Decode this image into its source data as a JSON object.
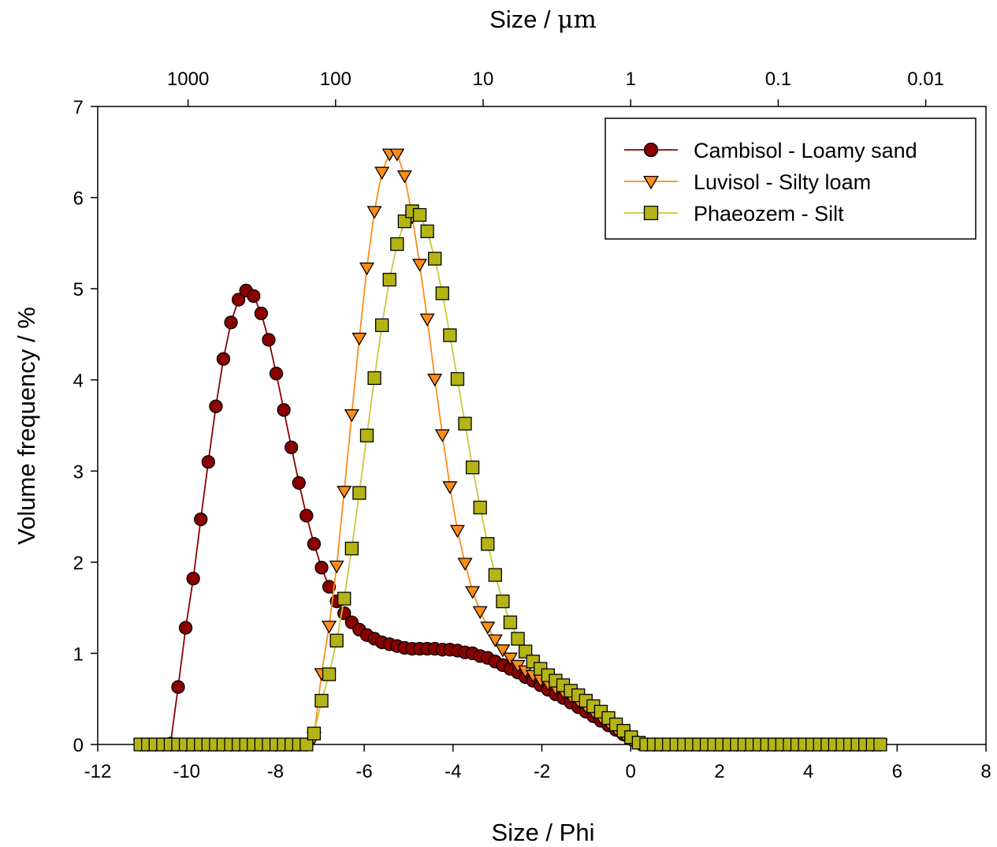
{
  "chart_data": {
    "type": "line",
    "xlabel": "Size / Phi",
    "ylabel": "Volume frequency / %",
    "x2label_prefix": "Size / ",
    "x2label_unit": "μm",
    "xlim": [
      -12,
      8
    ],
    "ylim": [
      0,
      7
    ],
    "xticks": [
      -12,
      -10,
      -8,
      -6,
      -4,
      -2,
      0,
      2,
      4,
      6,
      8
    ],
    "xtick_labels": [
      "-12",
      "-10",
      "-8",
      "-6",
      "-4",
      "-2",
      "0",
      "2",
      "4",
      "6",
      "8"
    ],
    "yticks": [
      0,
      1,
      2,
      3,
      4,
      5,
      6,
      7
    ],
    "ytick_labels": [
      "0",
      "1",
      "2",
      "3",
      "4",
      "5",
      "6",
      "7"
    ],
    "top_ticks": [
      {
        "phi": -9.966,
        "label": "1000"
      },
      {
        "phi": -6.644,
        "label": "100"
      },
      {
        "phi": -3.322,
        "label": "10"
      },
      {
        "phi": 0,
        "label": "1"
      },
      {
        "phi": 3.322,
        "label": "0.1"
      },
      {
        "phi": 6.644,
        "label": "0.01"
      }
    ],
    "legend_position": "top-right",
    "grid": false,
    "series": [
      {
        "name": "Cambisol - Loamy sand",
        "marker": "circle",
        "line_color": "#8b0000",
        "marker_fill": "#8b0000",
        "points": [
          [
            -11.04,
            0
          ],
          [
            -10.87,
            0
          ],
          [
            -10.7,
            0
          ],
          [
            -10.53,
            0
          ],
          [
            -10.36,
            0.01
          ],
          [
            -10.19,
            0.63
          ],
          [
            -10.02,
            1.28
          ],
          [
            -9.85,
            1.82
          ],
          [
            -9.68,
            2.47
          ],
          [
            -9.51,
            3.1
          ],
          [
            -9.34,
            3.71
          ],
          [
            -9.17,
            4.23
          ],
          [
            -9.0,
            4.63
          ],
          [
            -8.83,
            4.88
          ],
          [
            -8.66,
            4.98
          ],
          [
            -8.49,
            4.92
          ],
          [
            -8.32,
            4.73
          ],
          [
            -8.15,
            4.44
          ],
          [
            -7.98,
            4.07
          ],
          [
            -7.81,
            3.67
          ],
          [
            -7.64,
            3.26
          ],
          [
            -7.47,
            2.87
          ],
          [
            -7.3,
            2.51
          ],
          [
            -7.13,
            2.2
          ],
          [
            -6.96,
            1.94
          ],
          [
            -6.79,
            1.73
          ],
          [
            -6.62,
            1.57
          ],
          [
            -6.45,
            1.44
          ],
          [
            -6.28,
            1.34
          ],
          [
            -6.11,
            1.26
          ],
          [
            -5.94,
            1.2
          ],
          [
            -5.77,
            1.16
          ],
          [
            -5.6,
            1.12
          ],
          [
            -5.43,
            1.1
          ],
          [
            -5.26,
            1.08
          ],
          [
            -5.09,
            1.06
          ],
          [
            -4.92,
            1.05
          ],
          [
            -4.75,
            1.05
          ],
          [
            -4.58,
            1.05
          ],
          [
            -4.41,
            1.05
          ],
          [
            -4.24,
            1.04
          ],
          [
            -4.07,
            1.04
          ],
          [
            -3.9,
            1.03
          ],
          [
            -3.73,
            1.01
          ],
          [
            -3.56,
            1.0
          ],
          [
            -3.39,
            0.97
          ],
          [
            -3.22,
            0.95
          ],
          [
            -3.05,
            0.91
          ],
          [
            -2.88,
            0.87
          ],
          [
            -2.71,
            0.83
          ],
          [
            -2.54,
            0.79
          ],
          [
            -2.37,
            0.74
          ],
          [
            -2.2,
            0.7
          ],
          [
            -2.03,
            0.65
          ],
          [
            -1.86,
            0.6
          ],
          [
            -1.69,
            0.55
          ],
          [
            -1.52,
            0.51
          ],
          [
            -1.35,
            0.46
          ],
          [
            -1.18,
            0.41
          ],
          [
            -1.01,
            0.36
          ],
          [
            -0.84,
            0.31
          ],
          [
            -0.67,
            0.26
          ],
          [
            -0.5,
            0.21
          ],
          [
            -0.33,
            0.16
          ],
          [
            -0.16,
            0.11
          ],
          [
            0.01,
            0.06
          ],
          [
            0.18,
            0.02
          ],
          [
            0.35,
            0
          ],
          [
            0.52,
            0
          ],
          [
            0.69,
            0
          ],
          [
            0.86,
            0
          ],
          [
            1.03,
            0
          ],
          [
            1.2,
            0
          ],
          [
            1.37,
            0
          ],
          [
            1.54,
            0
          ],
          [
            1.71,
            0
          ],
          [
            1.88,
            0
          ],
          [
            2.05,
            0
          ],
          [
            2.22,
            0
          ],
          [
            2.39,
            0
          ],
          [
            2.56,
            0
          ],
          [
            2.73,
            0
          ],
          [
            2.9,
            0
          ],
          [
            3.07,
            0
          ],
          [
            3.24,
            0
          ],
          [
            3.41,
            0
          ],
          [
            3.58,
            0
          ],
          [
            3.75,
            0
          ],
          [
            3.92,
            0
          ],
          [
            4.09,
            0
          ],
          [
            4.26,
            0
          ],
          [
            4.43,
            0
          ],
          [
            4.6,
            0
          ],
          [
            4.77,
            0
          ],
          [
            4.94,
            0
          ],
          [
            5.11,
            0
          ],
          [
            5.28,
            0
          ],
          [
            5.45,
            0
          ],
          [
            5.62,
            0
          ]
        ]
      },
      {
        "name": "Luvisol - Silty loam",
        "marker": "triangle-down",
        "line_color": "#ff8c1a",
        "marker_fill": "#ff8c1a",
        "points": [
          [
            -11.04,
            0
          ],
          [
            -10.87,
            0
          ],
          [
            -10.7,
            0
          ],
          [
            -10.53,
            0
          ],
          [
            -10.36,
            0
          ],
          [
            -10.19,
            0
          ],
          [
            -10.02,
            0
          ],
          [
            -9.85,
            0
          ],
          [
            -9.68,
            0
          ],
          [
            -9.51,
            0
          ],
          [
            -9.34,
            0
          ],
          [
            -9.17,
            0
          ],
          [
            -9.0,
            0
          ],
          [
            -8.83,
            0
          ],
          [
            -8.66,
            0
          ],
          [
            -8.49,
            0
          ],
          [
            -8.32,
            0
          ],
          [
            -8.15,
            0
          ],
          [
            -7.98,
            0
          ],
          [
            -7.81,
            0
          ],
          [
            -7.64,
            0
          ],
          [
            -7.47,
            0
          ],
          [
            -7.3,
            0
          ],
          [
            -7.13,
            0.08
          ],
          [
            -6.96,
            0.78
          ],
          [
            -6.79,
            1.3
          ],
          [
            -6.62,
            1.96
          ],
          [
            -6.45,
            2.78
          ],
          [
            -6.28,
            3.62
          ],
          [
            -6.11,
            4.46
          ],
          [
            -5.94,
            5.23
          ],
          [
            -5.77,
            5.85
          ],
          [
            -5.6,
            6.28
          ],
          [
            -5.43,
            6.48
          ],
          [
            -5.26,
            6.48
          ],
          [
            -5.09,
            6.24
          ],
          [
            -4.92,
            5.79
          ],
          [
            -4.75,
            5.27
          ],
          [
            -4.58,
            4.67
          ],
          [
            -4.41,
            4.01
          ],
          [
            -4.24,
            3.4
          ],
          [
            -4.07,
            2.83
          ],
          [
            -3.9,
            2.35
          ],
          [
            -3.73,
            1.99
          ],
          [
            -3.56,
            1.68
          ],
          [
            -3.39,
            1.46
          ],
          [
            -3.22,
            1.29
          ],
          [
            -3.05,
            1.15
          ],
          [
            -2.88,
            1.04
          ],
          [
            -2.71,
            0.95
          ],
          [
            -2.54,
            0.87
          ],
          [
            -2.37,
            0.81
          ],
          [
            -2.2,
            0.76
          ],
          [
            -2.03,
            0.71
          ],
          [
            -1.86,
            0.67
          ],
          [
            -1.69,
            0.62
          ],
          [
            -1.52,
            0.58
          ],
          [
            -1.35,
            0.53
          ],
          [
            -1.18,
            0.48
          ],
          [
            -1.01,
            0.42
          ],
          [
            -0.84,
            0.36
          ],
          [
            -0.67,
            0.3
          ],
          [
            -0.5,
            0.24
          ],
          [
            -0.33,
            0.17
          ],
          [
            -0.16,
            0.11
          ],
          [
            0.01,
            0.05
          ],
          [
            0.18,
            0.01
          ],
          [
            0.35,
            0
          ],
          [
            0.52,
            0
          ],
          [
            0.69,
            0
          ],
          [
            0.86,
            0
          ],
          [
            1.03,
            0
          ],
          [
            1.2,
            0
          ],
          [
            1.37,
            0
          ],
          [
            1.54,
            0
          ],
          [
            1.71,
            0
          ],
          [
            1.88,
            0
          ],
          [
            2.05,
            0
          ],
          [
            2.22,
            0
          ],
          [
            2.39,
            0
          ],
          [
            2.56,
            0
          ],
          [
            2.73,
            0
          ],
          [
            2.9,
            0
          ],
          [
            3.07,
            0
          ],
          [
            3.24,
            0
          ],
          [
            3.41,
            0
          ],
          [
            3.58,
            0
          ],
          [
            3.75,
            0
          ],
          [
            3.92,
            0
          ],
          [
            4.09,
            0
          ],
          [
            4.26,
            0
          ],
          [
            4.43,
            0
          ],
          [
            4.6,
            0
          ],
          [
            4.77,
            0
          ],
          [
            4.94,
            0
          ],
          [
            5.11,
            0
          ],
          [
            5.28,
            0
          ],
          [
            5.45,
            0
          ],
          [
            5.62,
            0
          ]
        ]
      },
      {
        "name": "Phaeozem - Silt",
        "marker": "square",
        "line_color": "#c8c83c",
        "marker_fill": "#b4b414",
        "points": [
          [
            -11.04,
            0
          ],
          [
            -10.87,
            0
          ],
          [
            -10.7,
            0
          ],
          [
            -10.53,
            0
          ],
          [
            -10.36,
            0
          ],
          [
            -10.19,
            0
          ],
          [
            -10.02,
            0
          ],
          [
            -9.85,
            0
          ],
          [
            -9.68,
            0
          ],
          [
            -9.51,
            0
          ],
          [
            -9.34,
            0
          ],
          [
            -9.17,
            0
          ],
          [
            -9.0,
            0
          ],
          [
            -8.83,
            0
          ],
          [
            -8.66,
            0
          ],
          [
            -8.49,
            0
          ],
          [
            -8.32,
            0
          ],
          [
            -8.15,
            0
          ],
          [
            -7.98,
            0
          ],
          [
            -7.81,
            0
          ],
          [
            -7.64,
            0
          ],
          [
            -7.47,
            0
          ],
          [
            -7.3,
            0
          ],
          [
            -7.13,
            0.12
          ],
          [
            -6.96,
            0.48
          ],
          [
            -6.79,
            0.77
          ],
          [
            -6.62,
            1.14
          ],
          [
            -6.45,
            1.6
          ],
          [
            -6.28,
            2.15
          ],
          [
            -6.11,
            2.76
          ],
          [
            -5.94,
            3.39
          ],
          [
            -5.77,
            4.02
          ],
          [
            -5.6,
            4.6
          ],
          [
            -5.43,
            5.1
          ],
          [
            -5.26,
            5.49
          ],
          [
            -5.09,
            5.74
          ],
          [
            -4.92,
            5.85
          ],
          [
            -4.75,
            5.81
          ],
          [
            -4.58,
            5.63
          ],
          [
            -4.41,
            5.33
          ],
          [
            -4.24,
            4.95
          ],
          [
            -4.07,
            4.49
          ],
          [
            -3.9,
            4.01
          ],
          [
            -3.73,
            3.52
          ],
          [
            -3.56,
            3.04
          ],
          [
            -3.39,
            2.6
          ],
          [
            -3.22,
            2.2
          ],
          [
            -3.05,
            1.86
          ],
          [
            -2.88,
            1.57
          ],
          [
            -2.71,
            1.34
          ],
          [
            -2.54,
            1.16
          ],
          [
            -2.37,
            1.02
          ],
          [
            -2.2,
            0.91
          ],
          [
            -2.03,
            0.83
          ],
          [
            -1.86,
            0.76
          ],
          [
            -1.69,
            0.7
          ],
          [
            -1.52,
            0.65
          ],
          [
            -1.35,
            0.59
          ],
          [
            -1.18,
            0.54
          ],
          [
            -1.01,
            0.48
          ],
          [
            -0.84,
            0.42
          ],
          [
            -0.67,
            0.36
          ],
          [
            -0.5,
            0.29
          ],
          [
            -0.33,
            0.22
          ],
          [
            -0.16,
            0.15
          ],
          [
            0.01,
            0.08
          ],
          [
            0.18,
            0.02
          ],
          [
            0.35,
            0
          ],
          [
            0.52,
            0
          ],
          [
            0.69,
            0
          ],
          [
            0.86,
            0
          ],
          [
            1.03,
            0
          ],
          [
            1.2,
            0
          ],
          [
            1.37,
            0
          ],
          [
            1.54,
            0
          ],
          [
            1.71,
            0
          ],
          [
            1.88,
            0
          ],
          [
            2.05,
            0
          ],
          [
            2.22,
            0
          ],
          [
            2.39,
            0
          ],
          [
            2.56,
            0
          ],
          [
            2.73,
            0
          ],
          [
            2.9,
            0
          ],
          [
            3.07,
            0
          ],
          [
            3.24,
            0
          ],
          [
            3.41,
            0
          ],
          [
            3.58,
            0
          ],
          [
            3.75,
            0
          ],
          [
            3.92,
            0
          ],
          [
            4.09,
            0
          ],
          [
            4.26,
            0
          ],
          [
            4.43,
            0
          ],
          [
            4.6,
            0
          ],
          [
            4.77,
            0
          ],
          [
            4.94,
            0
          ],
          [
            5.11,
            0
          ],
          [
            5.28,
            0
          ],
          [
            5.45,
            0
          ],
          [
            5.62,
            0
          ]
        ]
      }
    ]
  }
}
